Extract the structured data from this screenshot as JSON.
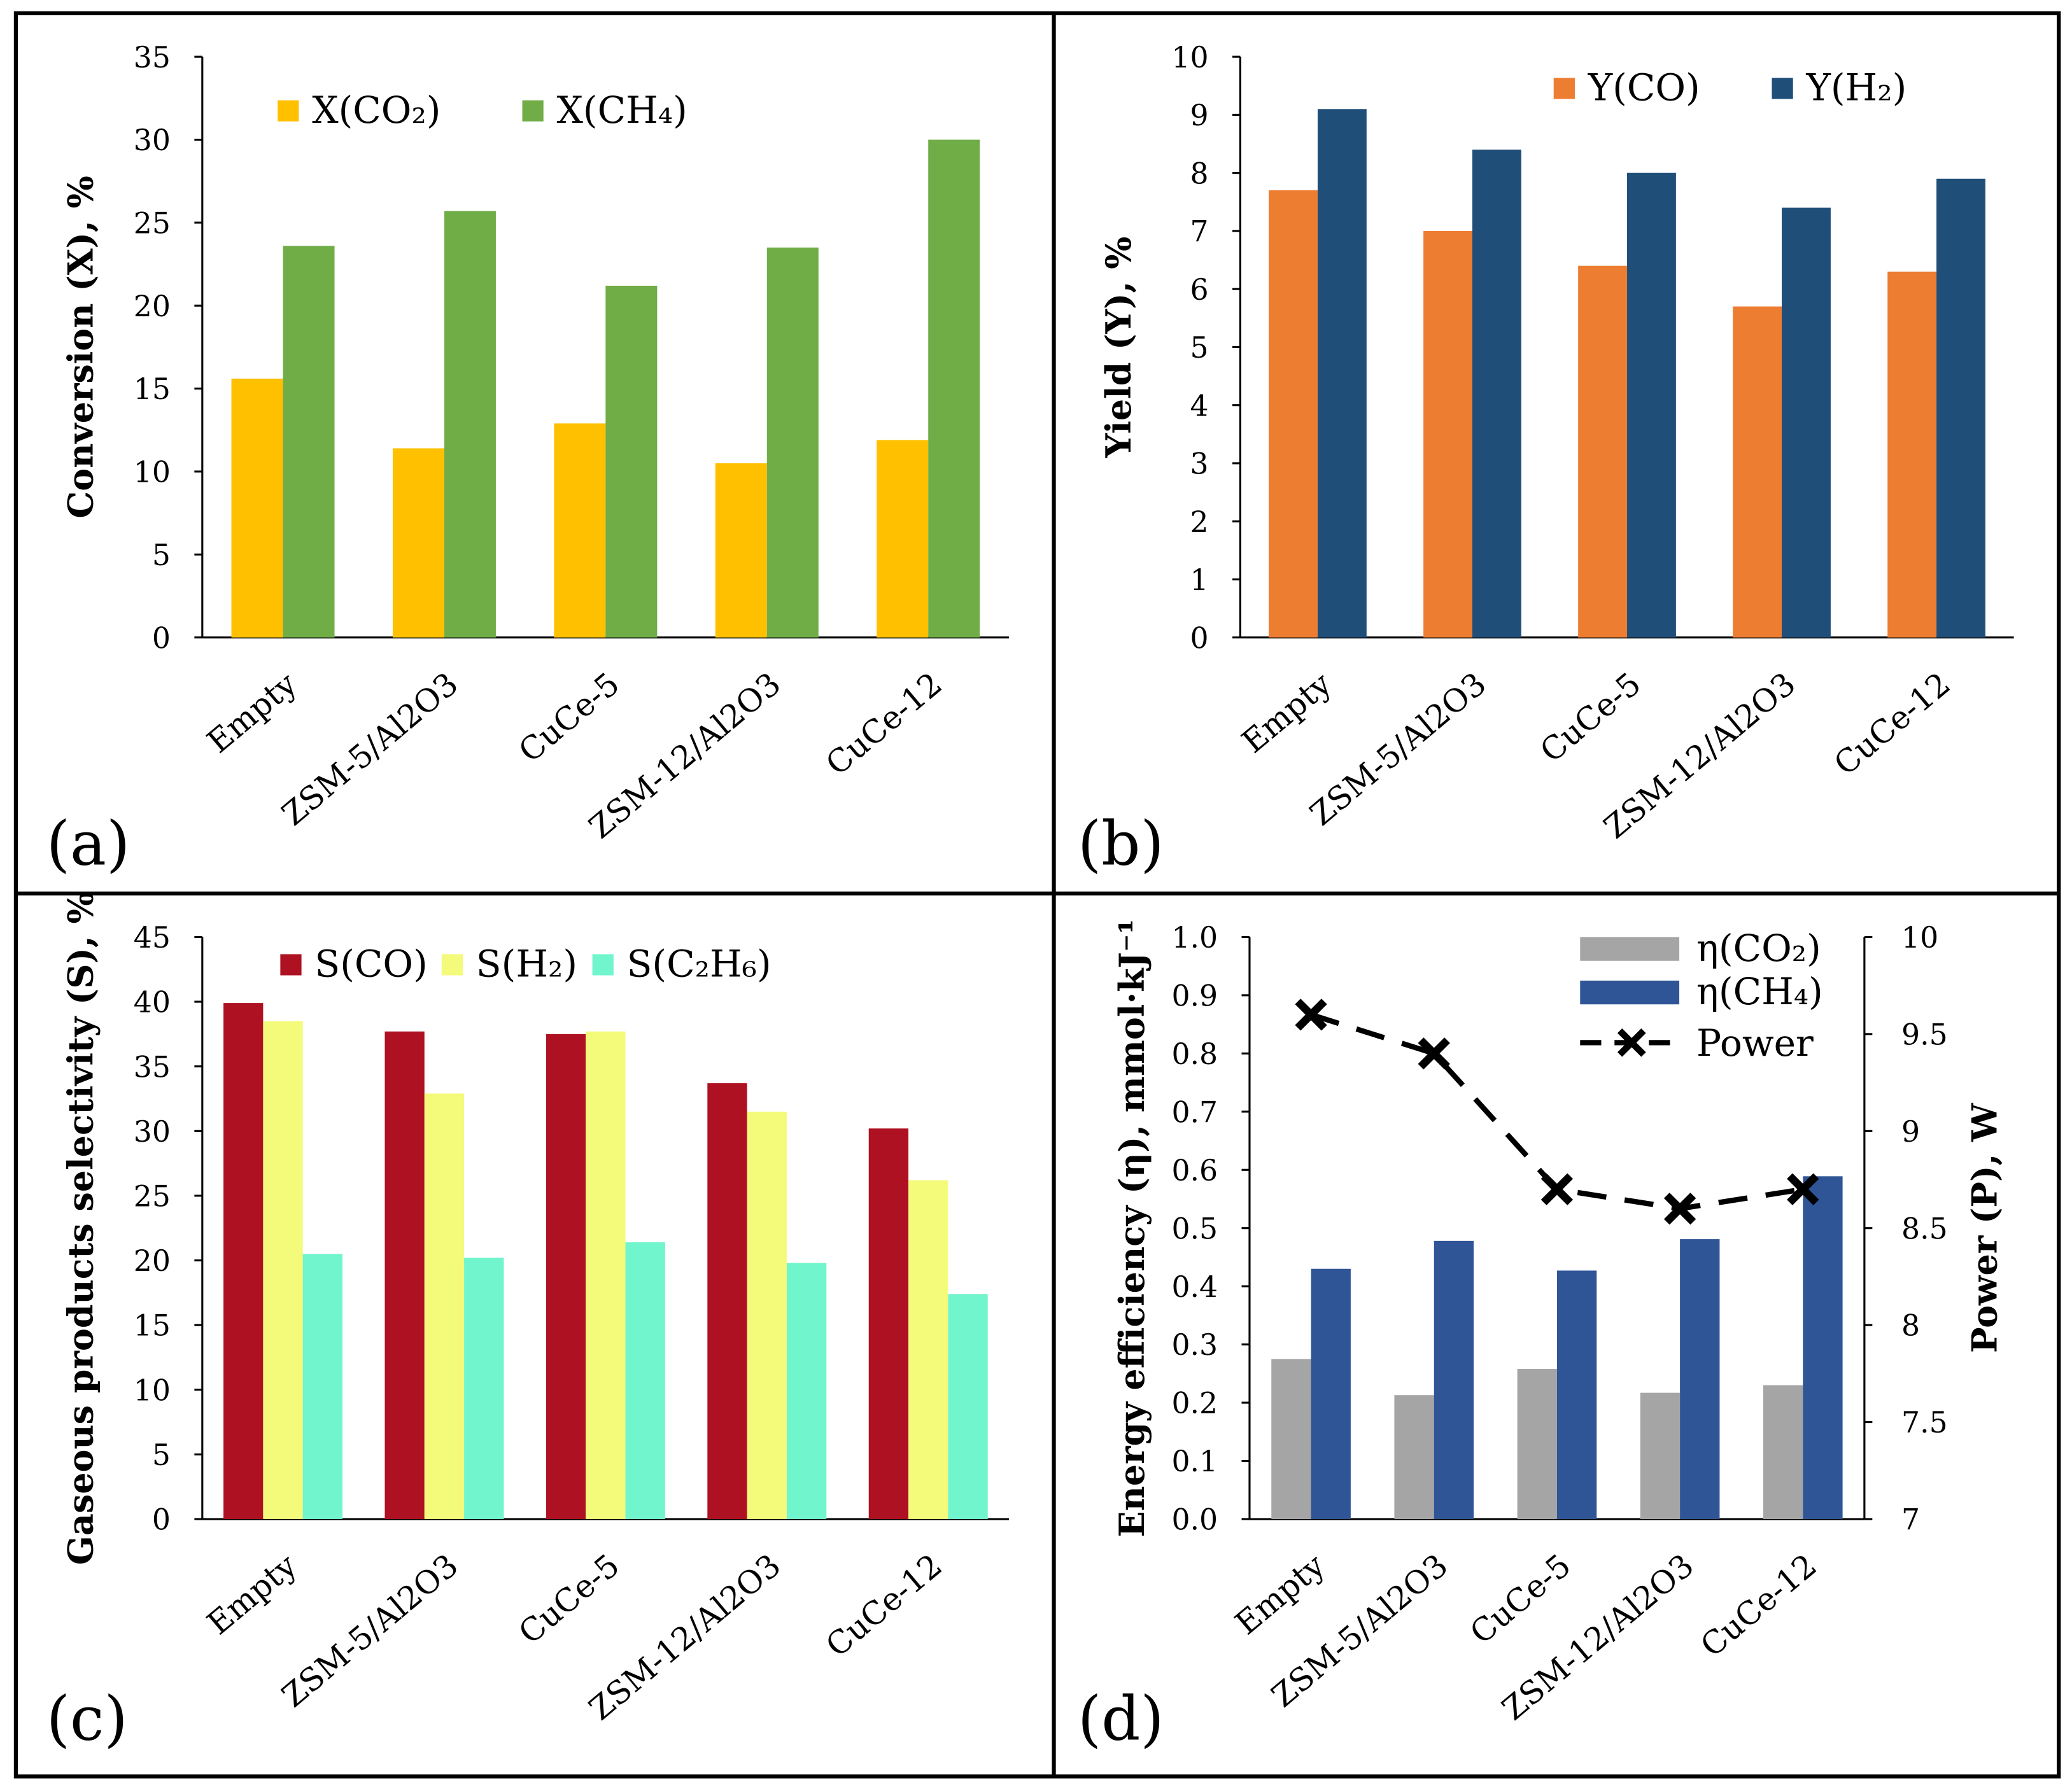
{
  "chart_data": [
    {
      "type": "bar",
      "panel_label": "(a)",
      "categories": [
        "Empty",
        "ZSM-5/Al2O3",
        "CuCe-5",
        "ZSM-12/Al2O3",
        "CuCe-12"
      ],
      "ylabel": "Conversion (X), %",
      "ylim": [
        0,
        35
      ],
      "ystep": 5,
      "series": [
        {
          "name": "X(CO₂)",
          "color": "#FFC000",
          "values": [
            15.6,
            11.4,
            12.9,
            10.5,
            11.9
          ]
        },
        {
          "name": "X(CH₄)",
          "color": "#70AD47",
          "values": [
            23.6,
            25.7,
            21.2,
            23.5,
            30.0
          ]
        }
      ],
      "legend": "top-left"
    },
    {
      "type": "bar",
      "panel_label": "(b)",
      "categories": [
        "Empty",
        "ZSM-5/Al2O3",
        "CuCe-5",
        "ZSM-12/Al2O3",
        "CuCe-12"
      ],
      "ylabel": "Yield (Y), %",
      "ylim": [
        0,
        10
      ],
      "ystep": 1,
      "series": [
        {
          "name": "Y(CO)",
          "color": "#ED7D31",
          "values": [
            7.7,
            7.0,
            6.4,
            5.7,
            6.3
          ]
        },
        {
          "name": "Y(H₂)",
          "color": "#1F4E79",
          "values": [
            9.1,
            8.4,
            8.0,
            7.4,
            7.9
          ]
        }
      ],
      "legend": "top-right"
    },
    {
      "type": "bar",
      "panel_label": "(c)",
      "categories": [
        "Empty",
        "ZSM-5/Al2O3",
        "CuCe-5",
        "ZSM-12/Al2O3",
        "CuCe-12"
      ],
      "ylabel": "Gaseous products selectivity (S), %",
      "ylim": [
        0,
        45
      ],
      "ystep": 5,
      "series": [
        {
          "name": "S(CO)",
          "color": "#AE1121",
          "values": [
            39.9,
            37.7,
            37.5,
            33.7,
            30.2
          ]
        },
        {
          "name": "S(H₂)",
          "color": "#F4FA7A",
          "values": [
            38.5,
            32.9,
            37.7,
            31.5,
            26.2
          ]
        },
        {
          "name": "S(C₂H₆)",
          "color": "#70F5CC",
          "values": [
            20.5,
            20.2,
            21.4,
            19.8,
            17.4
          ]
        }
      ],
      "legend": "top-left"
    },
    {
      "type": "bar+line",
      "panel_label": "(d)",
      "categories": [
        "Empty",
        "ZSM-5/Al2O3",
        "CuCe-5",
        "ZSM-12/Al2O3",
        "CuCe-12"
      ],
      "ylabel": "Energy efficiency (η), mmol·kJ⁻¹",
      "ylim": [
        0,
        1.0
      ],
      "ystep": 0.1,
      "y2label": "Power (P), W",
      "y2lim": [
        7,
        10
      ],
      "y2step": 0.5,
      "series": [
        {
          "name": "η(CO₂)",
          "color": "#A5A5A5",
          "values": [
            0.275,
            0.213,
            0.258,
            0.217,
            0.23
          ]
        },
        {
          "name": "η(CH₄)",
          "color": "#2F5597",
          "values": [
            0.43,
            0.478,
            0.427,
            0.481,
            0.589
          ]
        }
      ],
      "line_series": {
        "name": "Power",
        "color": "#000000",
        "values": [
          9.6,
          9.4,
          8.7,
          8.6,
          8.7
        ],
        "axis": "right"
      },
      "legend": "top-right"
    }
  ]
}
